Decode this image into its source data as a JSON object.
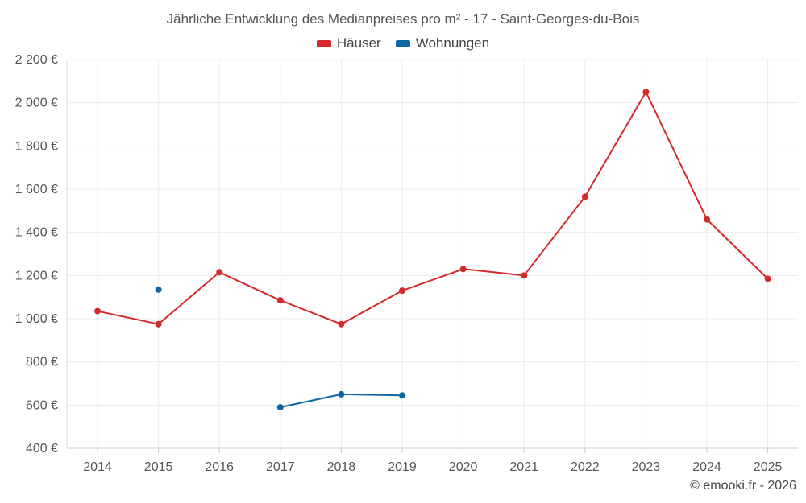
{
  "chart_data": {
    "type": "line",
    "title": "Jährliche Entwicklung des Medianpreises pro m² - 17 - Saint-Georges-du-Bois",
    "xlabel": "",
    "ylabel": "",
    "categories": [
      "2014",
      "2015",
      "2016",
      "2017",
      "2018",
      "2019",
      "2020",
      "2021",
      "2022",
      "2023",
      "2024",
      "2025"
    ],
    "ylim": [
      400,
      2200
    ],
    "yticks": [
      400,
      600,
      800,
      1000,
      1200,
      1400,
      1600,
      1800,
      2000,
      2200
    ],
    "ytick_labels": [
      "400 €",
      "600 €",
      "800 €",
      "1 000 €",
      "1 200 €",
      "1 400 €",
      "1 600 €",
      "1 800 €",
      "2 000 €",
      "2 200 €"
    ],
    "grid": true,
    "legend_position": "top-center",
    "series": [
      {
        "name": "Häuser",
        "color": "#d42a2a",
        "values": [
          1035,
          975,
          1215,
          1085,
          975,
          1130,
          1230,
          1200,
          1565,
          2050,
          1460,
          1185
        ]
      },
      {
        "name": "Wohnungen",
        "color": "#0e67a4",
        "values": [
          null,
          1135,
          null,
          590,
          650,
          645,
          null,
          null,
          null,
          null,
          null,
          null
        ]
      }
    ]
  },
  "footer": {
    "credit": "© emooki.fr - 2026"
  }
}
